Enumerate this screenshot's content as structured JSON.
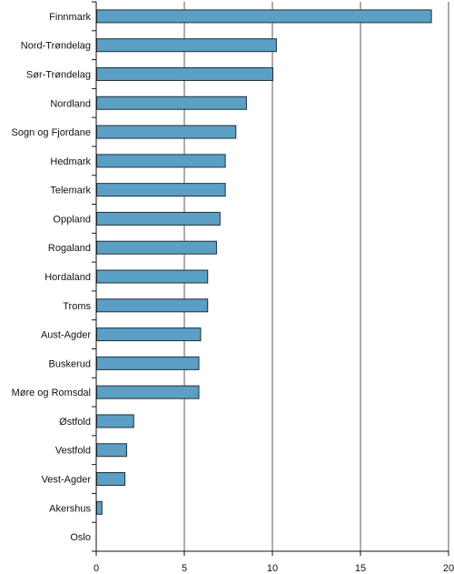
{
  "chart_data": {
    "type": "bar",
    "orientation": "horizontal",
    "categories": [
      "Finnmark",
      "Nord-Trøndelag",
      "Sør-Trøndelag",
      "Nordland",
      "Sogn og Fjordane",
      "Hedmark",
      "Telemark",
      "Oppland",
      "Rogaland",
      "Hordaland",
      "Troms",
      "Aust-Agder",
      "Buskerud",
      "Møre og Romsdal",
      "Østfold",
      "Vestfold",
      "Vest-Agder",
      "Akershus",
      "Oslo"
    ],
    "values": [
      19.0,
      10.2,
      10.0,
      8.5,
      7.9,
      7.3,
      7.3,
      7.0,
      6.8,
      6.3,
      6.3,
      5.9,
      5.8,
      5.8,
      2.1,
      1.7,
      1.6,
      0.3,
      0.0
    ],
    "xlim": [
      0,
      20
    ],
    "xticks": [
      "0",
      "5",
      "10",
      "15",
      "20"
    ],
    "title": "",
    "xlabel": "",
    "ylabel": "",
    "grid": "vertical",
    "legend": "none",
    "bar_color": "#5b9fc4",
    "bar_edge_color": "#1f2f3a"
  }
}
